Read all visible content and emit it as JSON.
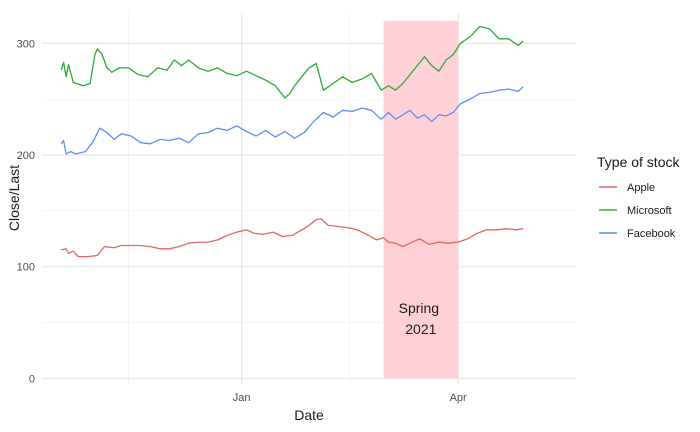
{
  "chart_data": {
    "type": "line",
    "xlabel": "Date",
    "ylabel": "Close/Last",
    "x_range": [
      "2020-10-10",
      "2021-05-20"
    ],
    "ylim": [
      -5,
      328
    ],
    "x_ticks": [
      {
        "date": "2021-01-01",
        "label": "Jan"
      },
      {
        "date": "2021-04-01",
        "label": "Apr"
      }
    ],
    "x_minor_ticks": [
      "2020-11-15",
      "2021-02-15"
    ],
    "y_ticks": [
      0,
      100,
      200,
      300
    ],
    "y_minor_ticks": [
      50,
      150,
      250
    ],
    "grid": true,
    "legend": {
      "title": "Type of stock",
      "position": "right"
    },
    "annotation": {
      "label_line1": "Spring",
      "label_line2": "2021",
      "x_start": "2021-03-01",
      "x_end": "2021-04-01",
      "y_top": 320,
      "color": "#ffccd1"
    },
    "series": [
      {
        "name": "Apple",
        "color": "#e76460",
        "points": [
          [
            "2020-10-18",
            115
          ],
          [
            "2020-10-20",
            116
          ],
          [
            "2020-10-21",
            112
          ],
          [
            "2020-10-23",
            114
          ],
          [
            "2020-10-25",
            109
          ],
          [
            "2020-10-29",
            109
          ],
          [
            "2020-11-02",
            110
          ],
          [
            "2020-11-05",
            118
          ],
          [
            "2020-11-09",
            117
          ],
          [
            "2020-11-12",
            119
          ],
          [
            "2020-11-16",
            119
          ],
          [
            "2020-11-20",
            119
          ],
          [
            "2020-11-24",
            118
          ],
          [
            "2020-11-28",
            116
          ],
          [
            "2020-12-02",
            116
          ],
          [
            "2020-12-06",
            118
          ],
          [
            "2020-12-10",
            121
          ],
          [
            "2020-12-14",
            122
          ],
          [
            "2020-12-18",
            122
          ],
          [
            "2020-12-22",
            124
          ],
          [
            "2020-12-26",
            128
          ],
          [
            "2020-12-30",
            131
          ],
          [
            "2021-01-03",
            133
          ],
          [
            "2021-01-06",
            130
          ],
          [
            "2021-01-10",
            129
          ],
          [
            "2021-01-14",
            131
          ],
          [
            "2021-01-18",
            127
          ],
          [
            "2021-01-22",
            128
          ],
          [
            "2021-01-26",
            133
          ],
          [
            "2021-01-29",
            137
          ],
          [
            "2021-02-01",
            142
          ],
          [
            "2021-02-03",
            143
          ],
          [
            "2021-02-06",
            137
          ],
          [
            "2021-02-10",
            136
          ],
          [
            "2021-02-14",
            135
          ],
          [
            "2021-02-18",
            133
          ],
          [
            "2021-02-22",
            129
          ],
          [
            "2021-02-26",
            124
          ],
          [
            "2021-03-01",
            126
          ],
          [
            "2021-03-03",
            122
          ],
          [
            "2021-03-06",
            121
          ],
          [
            "2021-03-09",
            118
          ],
          [
            "2021-03-12",
            121
          ],
          [
            "2021-03-16",
            125
          ],
          [
            "2021-03-20",
            120
          ],
          [
            "2021-03-24",
            122
          ],
          [
            "2021-03-28",
            121
          ],
          [
            "2021-04-01",
            122
          ],
          [
            "2021-04-05",
            125
          ],
          [
            "2021-04-09",
            130
          ],
          [
            "2021-04-13",
            133
          ],
          [
            "2021-04-17",
            133
          ],
          [
            "2021-04-21",
            134
          ],
          [
            "2021-04-25",
            133
          ],
          [
            "2021-04-28",
            134
          ]
        ]
      },
      {
        "name": "Microsoft",
        "color": "#2aab38",
        "points": [
          [
            "2020-10-18",
            276
          ],
          [
            "2020-10-19",
            283
          ],
          [
            "2020-10-20",
            270
          ],
          [
            "2020-10-21",
            281
          ],
          [
            "2020-10-23",
            265
          ],
          [
            "2020-10-27",
            262
          ],
          [
            "2020-10-30",
            264
          ],
          [
            "2020-11-01",
            290
          ],
          [
            "2020-11-02",
            295
          ],
          [
            "2020-11-04",
            290
          ],
          [
            "2020-11-06",
            278
          ],
          [
            "2020-11-08",
            274
          ],
          [
            "2020-11-11",
            278
          ],
          [
            "2020-11-15",
            278
          ],
          [
            "2020-11-19",
            272
          ],
          [
            "2020-11-23",
            270
          ],
          [
            "2020-11-27",
            278
          ],
          [
            "2020-12-01",
            276
          ],
          [
            "2020-12-04",
            285
          ],
          [
            "2020-12-07",
            280
          ],
          [
            "2020-12-10",
            285
          ],
          [
            "2020-12-14",
            278
          ],
          [
            "2020-12-18",
            275
          ],
          [
            "2020-12-22",
            278
          ],
          [
            "2020-12-26",
            273
          ],
          [
            "2020-12-30",
            271
          ],
          [
            "2021-01-03",
            275
          ],
          [
            "2021-01-07",
            271
          ],
          [
            "2021-01-11",
            267
          ],
          [
            "2021-01-15",
            262
          ],
          [
            "2021-01-19",
            251
          ],
          [
            "2021-01-21",
            255
          ],
          [
            "2021-01-23",
            262
          ],
          [
            "2021-01-26",
            270
          ],
          [
            "2021-01-29",
            278
          ],
          [
            "2021-02-01",
            282
          ],
          [
            "2021-02-04",
            258
          ],
          [
            "2021-02-08",
            264
          ],
          [
            "2021-02-12",
            270
          ],
          [
            "2021-02-16",
            265
          ],
          [
            "2021-02-20",
            268
          ],
          [
            "2021-02-24",
            273
          ],
          [
            "2021-02-28",
            258
          ],
          [
            "2021-03-03",
            262
          ],
          [
            "2021-03-06",
            258
          ],
          [
            "2021-03-09",
            264
          ],
          [
            "2021-03-12",
            272
          ],
          [
            "2021-03-15",
            280
          ],
          [
            "2021-03-18",
            288
          ],
          [
            "2021-03-21",
            280
          ],
          [
            "2021-03-24",
            275
          ],
          [
            "2021-03-27",
            285
          ],
          [
            "2021-03-30",
            290
          ],
          [
            "2021-04-02",
            300
          ],
          [
            "2021-04-06",
            306
          ],
          [
            "2021-04-10",
            315
          ],
          [
            "2021-04-14",
            313
          ],
          [
            "2021-04-18",
            304
          ],
          [
            "2021-04-22",
            304
          ],
          [
            "2021-04-26",
            298
          ],
          [
            "2021-04-28",
            302
          ]
        ]
      },
      {
        "name": "Facebook",
        "color": "#5b8ef3",
        "points": [
          [
            "2020-10-18",
            210
          ],
          [
            "2020-10-19",
            213
          ],
          [
            "2020-10-20",
            201
          ],
          [
            "2020-10-22",
            203
          ],
          [
            "2020-10-24",
            201
          ],
          [
            "2020-10-28",
            203
          ],
          [
            "2020-10-31",
            211
          ],
          [
            "2020-11-03",
            224
          ],
          [
            "2020-11-06",
            220
          ],
          [
            "2020-11-09",
            214
          ],
          [
            "2020-11-12",
            219
          ],
          [
            "2020-11-16",
            217
          ],
          [
            "2020-11-20",
            211
          ],
          [
            "2020-11-24",
            210
          ],
          [
            "2020-11-28",
            214
          ],
          [
            "2020-12-02",
            213
          ],
          [
            "2020-12-06",
            215
          ],
          [
            "2020-12-10",
            211
          ],
          [
            "2020-12-14",
            219
          ],
          [
            "2020-12-18",
            220
          ],
          [
            "2020-12-22",
            224
          ],
          [
            "2020-12-26",
            222
          ],
          [
            "2020-12-30",
            226
          ],
          [
            "2021-01-03",
            221
          ],
          [
            "2021-01-07",
            217
          ],
          [
            "2021-01-11",
            222
          ],
          [
            "2021-01-15",
            216
          ],
          [
            "2021-01-19",
            221
          ],
          [
            "2021-01-23",
            215
          ],
          [
            "2021-01-27",
            220
          ],
          [
            "2021-01-31",
            230
          ],
          [
            "2021-02-04",
            238
          ],
          [
            "2021-02-08",
            234
          ],
          [
            "2021-02-12",
            240
          ],
          [
            "2021-02-16",
            239
          ],
          [
            "2021-02-20",
            242
          ],
          [
            "2021-02-24",
            240
          ],
          [
            "2021-02-28",
            232
          ],
          [
            "2021-03-03",
            238
          ],
          [
            "2021-03-06",
            232
          ],
          [
            "2021-03-09",
            236
          ],
          [
            "2021-03-12",
            240
          ],
          [
            "2021-03-15",
            233
          ],
          [
            "2021-03-18",
            236
          ],
          [
            "2021-03-21",
            230
          ],
          [
            "2021-03-24",
            236
          ],
          [
            "2021-03-27",
            235
          ],
          [
            "2021-03-30",
            238
          ],
          [
            "2021-04-02",
            246
          ],
          [
            "2021-04-06",
            250
          ],
          [
            "2021-04-10",
            255
          ],
          [
            "2021-04-14",
            256
          ],
          [
            "2021-04-18",
            258
          ],
          [
            "2021-04-22",
            259
          ],
          [
            "2021-04-26",
            257
          ],
          [
            "2021-04-28",
            261
          ]
        ]
      }
    ]
  }
}
